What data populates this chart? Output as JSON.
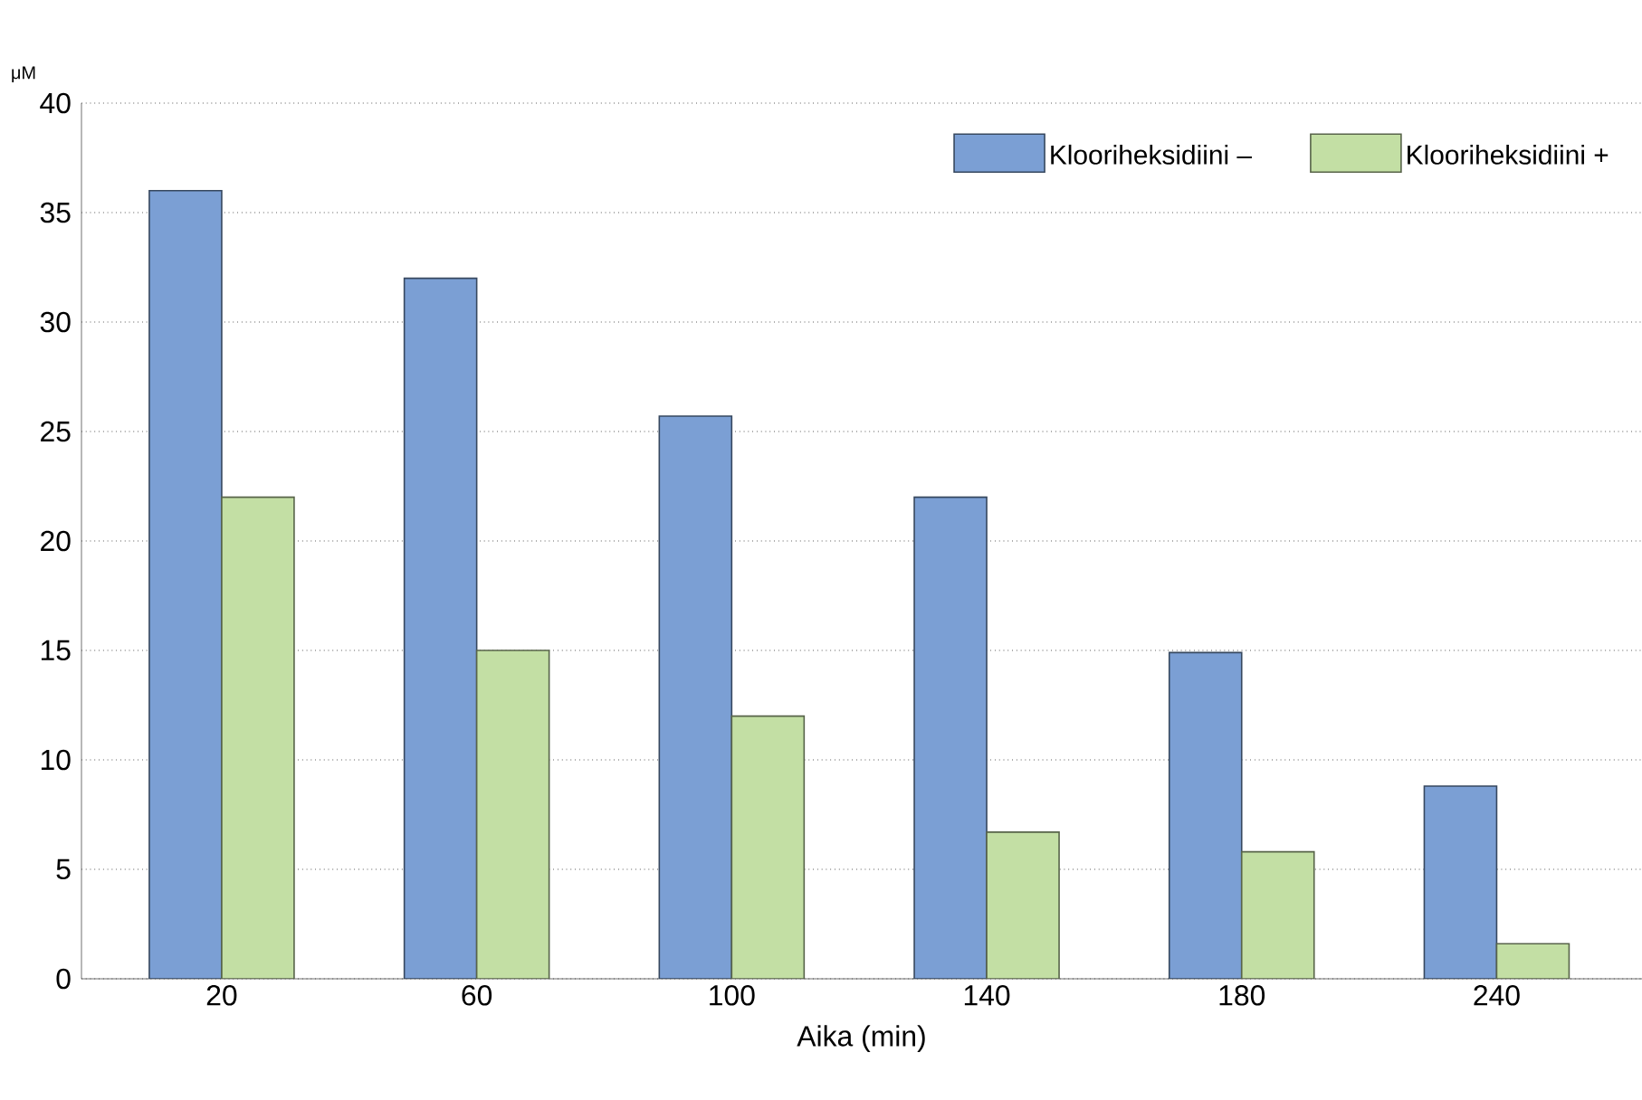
{
  "chart_data": {
    "type": "bar",
    "xlabel": "Aika (min)",
    "ylabel": "μM",
    "categories": [
      "20",
      "60",
      "100",
      "140",
      "180",
      "240"
    ],
    "series": [
      {
        "name": "Klooriheksidiini –",
        "color": "#7b9fd4",
        "values": [
          36,
          32,
          25.7,
          22,
          14.9,
          8.8
        ]
      },
      {
        "name": "Klooriheksidiini +",
        "color": "#c3dfa4",
        "values": [
          22,
          15,
          12,
          6.7,
          5.8,
          1.6
        ]
      }
    ],
    "ylim": [
      0,
      40
    ],
    "yticks": [
      0,
      5,
      10,
      15,
      20,
      25,
      30,
      35,
      40
    ],
    "grid": "y",
    "legend": "top right"
  }
}
